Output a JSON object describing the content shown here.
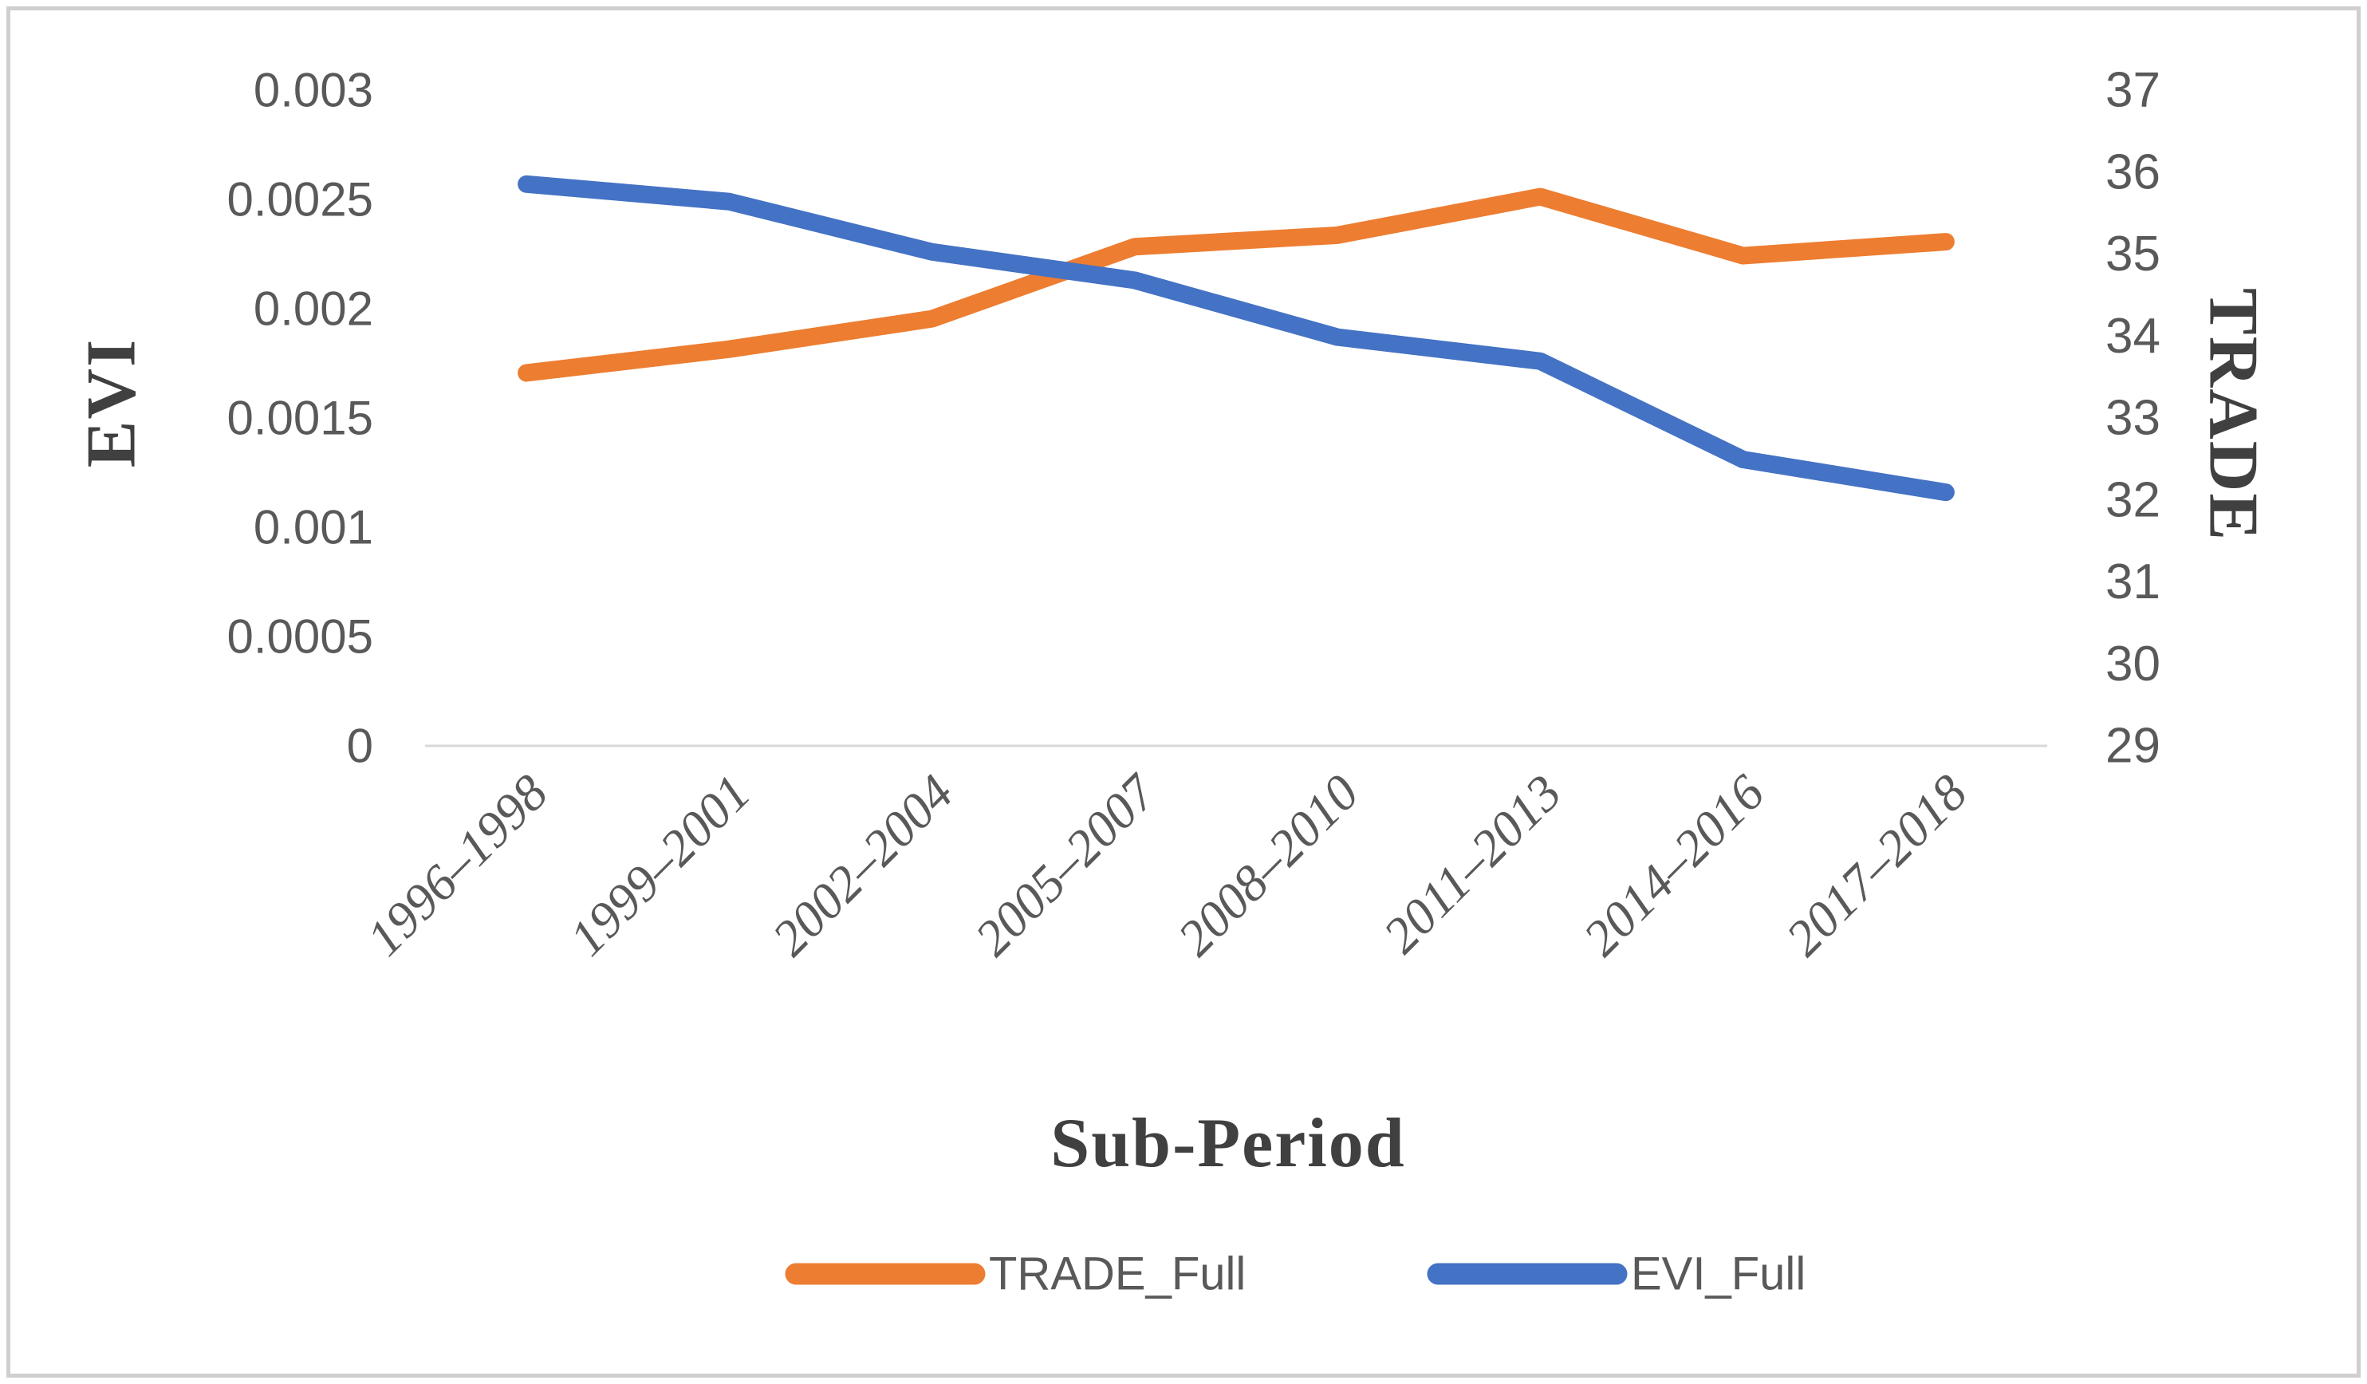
{
  "chart_data": {
    "type": "line",
    "title": "",
    "grid": "off",
    "background": "#ffffff",
    "categories": [
      "1996–1998",
      "1999–2001",
      "2002–2004",
      "2005–2007",
      "2008–2010",
      "2011–2013",
      "2014–2016",
      "2017–2018"
    ],
    "series": [
      {
        "name": "TRADE_Full",
        "axis": "right",
        "color": "#ED7D31",
        "values": [
          33.55,
          33.84,
          34.21,
          35.09,
          35.23,
          35.7,
          34.98,
          35.15
        ]
      },
      {
        "name": "EVI_Full",
        "axis": "left",
        "color": "#4472C4",
        "values": [
          0.00257,
          0.00249,
          0.00226,
          0.00213,
          0.00187,
          0.00176,
          0.00131,
          0.00116
        ]
      }
    ],
    "left_axis": {
      "title": "EVI",
      "min": 0,
      "max": 0.003,
      "tick_values": [
        0,
        0.0005,
        0.001,
        0.0015,
        0.002,
        0.0025,
        0.003
      ],
      "tick_labels": [
        "0",
        "0.0005",
        "0.001",
        "0.0015",
        "0.002",
        "0.0025",
        "0.003"
      ]
    },
    "right_axis": {
      "title": "TRADE",
      "min": 29,
      "max": 37,
      "tick_values": [
        29,
        30,
        31,
        32,
        33,
        34,
        35,
        36,
        37
      ],
      "tick_labels": [
        "29",
        "30",
        "31",
        "32",
        "33",
        "34",
        "35",
        "36",
        "37"
      ]
    },
    "x_axis": {
      "title": "Sub-Period"
    },
    "legend": {
      "position": "bottom",
      "entries": [
        "TRADE_Full",
        "EVI_Full"
      ]
    }
  },
  "colors": {
    "trade_line": "#ED7D31",
    "evi_line": "#4472C4",
    "tick_text": "#595959",
    "axis_title_text": "#404040",
    "axis_line": "#D9D9D9",
    "frame_border": "#CFCFCF"
  }
}
